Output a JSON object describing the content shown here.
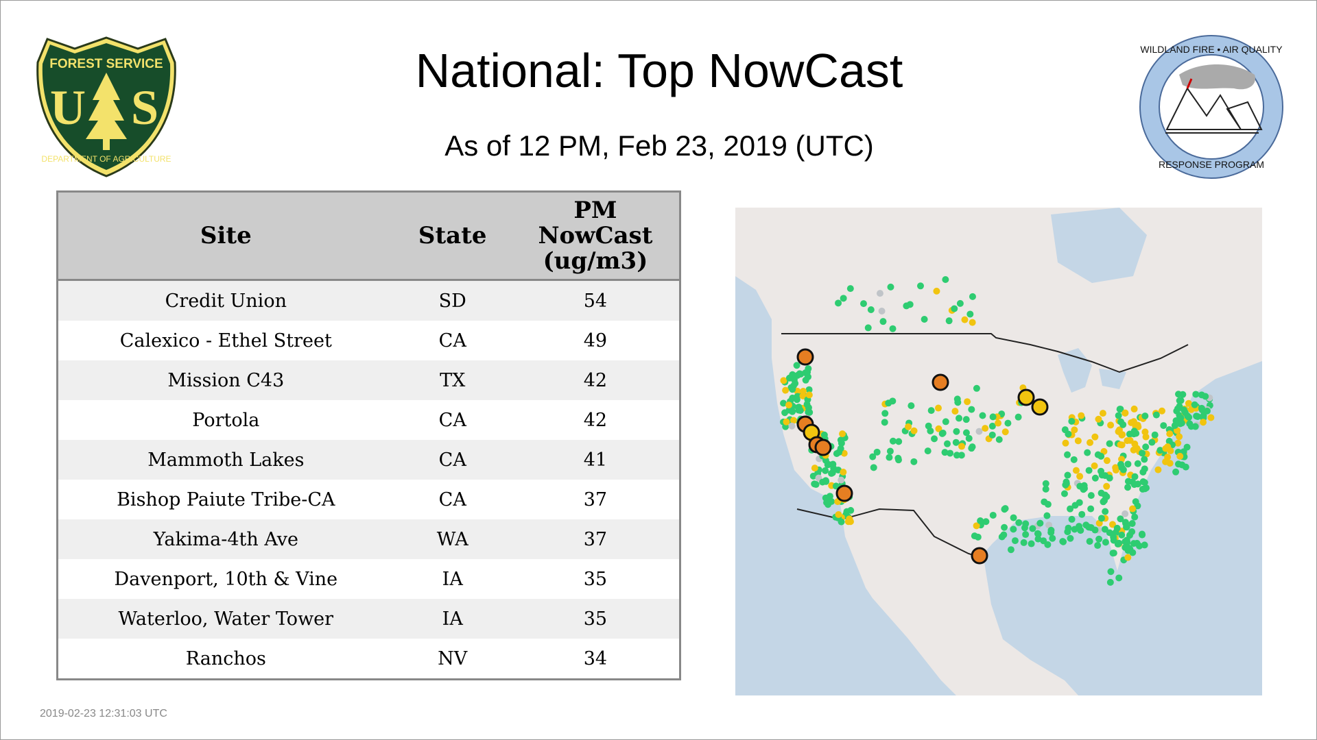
{
  "header": {
    "title": "National: Top NowCast",
    "subtitle": "As of 12 PM, Feb 23, 2019 (UTC)"
  },
  "logos": {
    "usfs": {
      "top": "FOREST SERVICE",
      "letters": "US",
      "bottom": "DEPARTMENT OF AGRICULTURE"
    },
    "wfaq": {
      "top": "WILDLAND FIRE • AIR QUALITY",
      "bottom": "RESPONSE PROGRAM"
    }
  },
  "table": {
    "columns": [
      "Site",
      "State",
      "PM NowCast (ug/m3)"
    ],
    "header_lines": {
      "pm1": "PM",
      "pm2": "NowCast",
      "pm3": "(ug/m3)"
    },
    "rows": [
      {
        "site": "Credit Union",
        "state": "SD",
        "value": "54"
      },
      {
        "site": "Calexico - Ethel Street",
        "state": "CA",
        "value": "49"
      },
      {
        "site": "Mission C43",
        "state": "TX",
        "value": "42"
      },
      {
        "site": "Portola",
        "state": "CA",
        "value": "42"
      },
      {
        "site": "Mammoth Lakes",
        "state": "CA",
        "value": "41"
      },
      {
        "site": "Bishop Paiute Tribe-CA",
        "state": "CA",
        "value": "37"
      },
      {
        "site": "Yakima-4th Ave",
        "state": "WA",
        "value": "37"
      },
      {
        "site": "Davenport, 10th & Vine",
        "state": "IA",
        "value": "35"
      },
      {
        "site": "Waterloo, Water Tower",
        "state": "IA",
        "value": "35"
      },
      {
        "site": "Ranchos",
        "state": "NV",
        "value": "34"
      }
    ]
  },
  "map": {
    "colors": {
      "good": "#2ecc71",
      "moderate": "#f1c40f",
      "usg": "#e67e22",
      "nodata": "#c0c4c8",
      "ocean": "#c4d6e6",
      "land": "#ece8e6"
    }
  },
  "footer": {
    "timestamp": "2019-02-23 12:31:03 UTC"
  }
}
